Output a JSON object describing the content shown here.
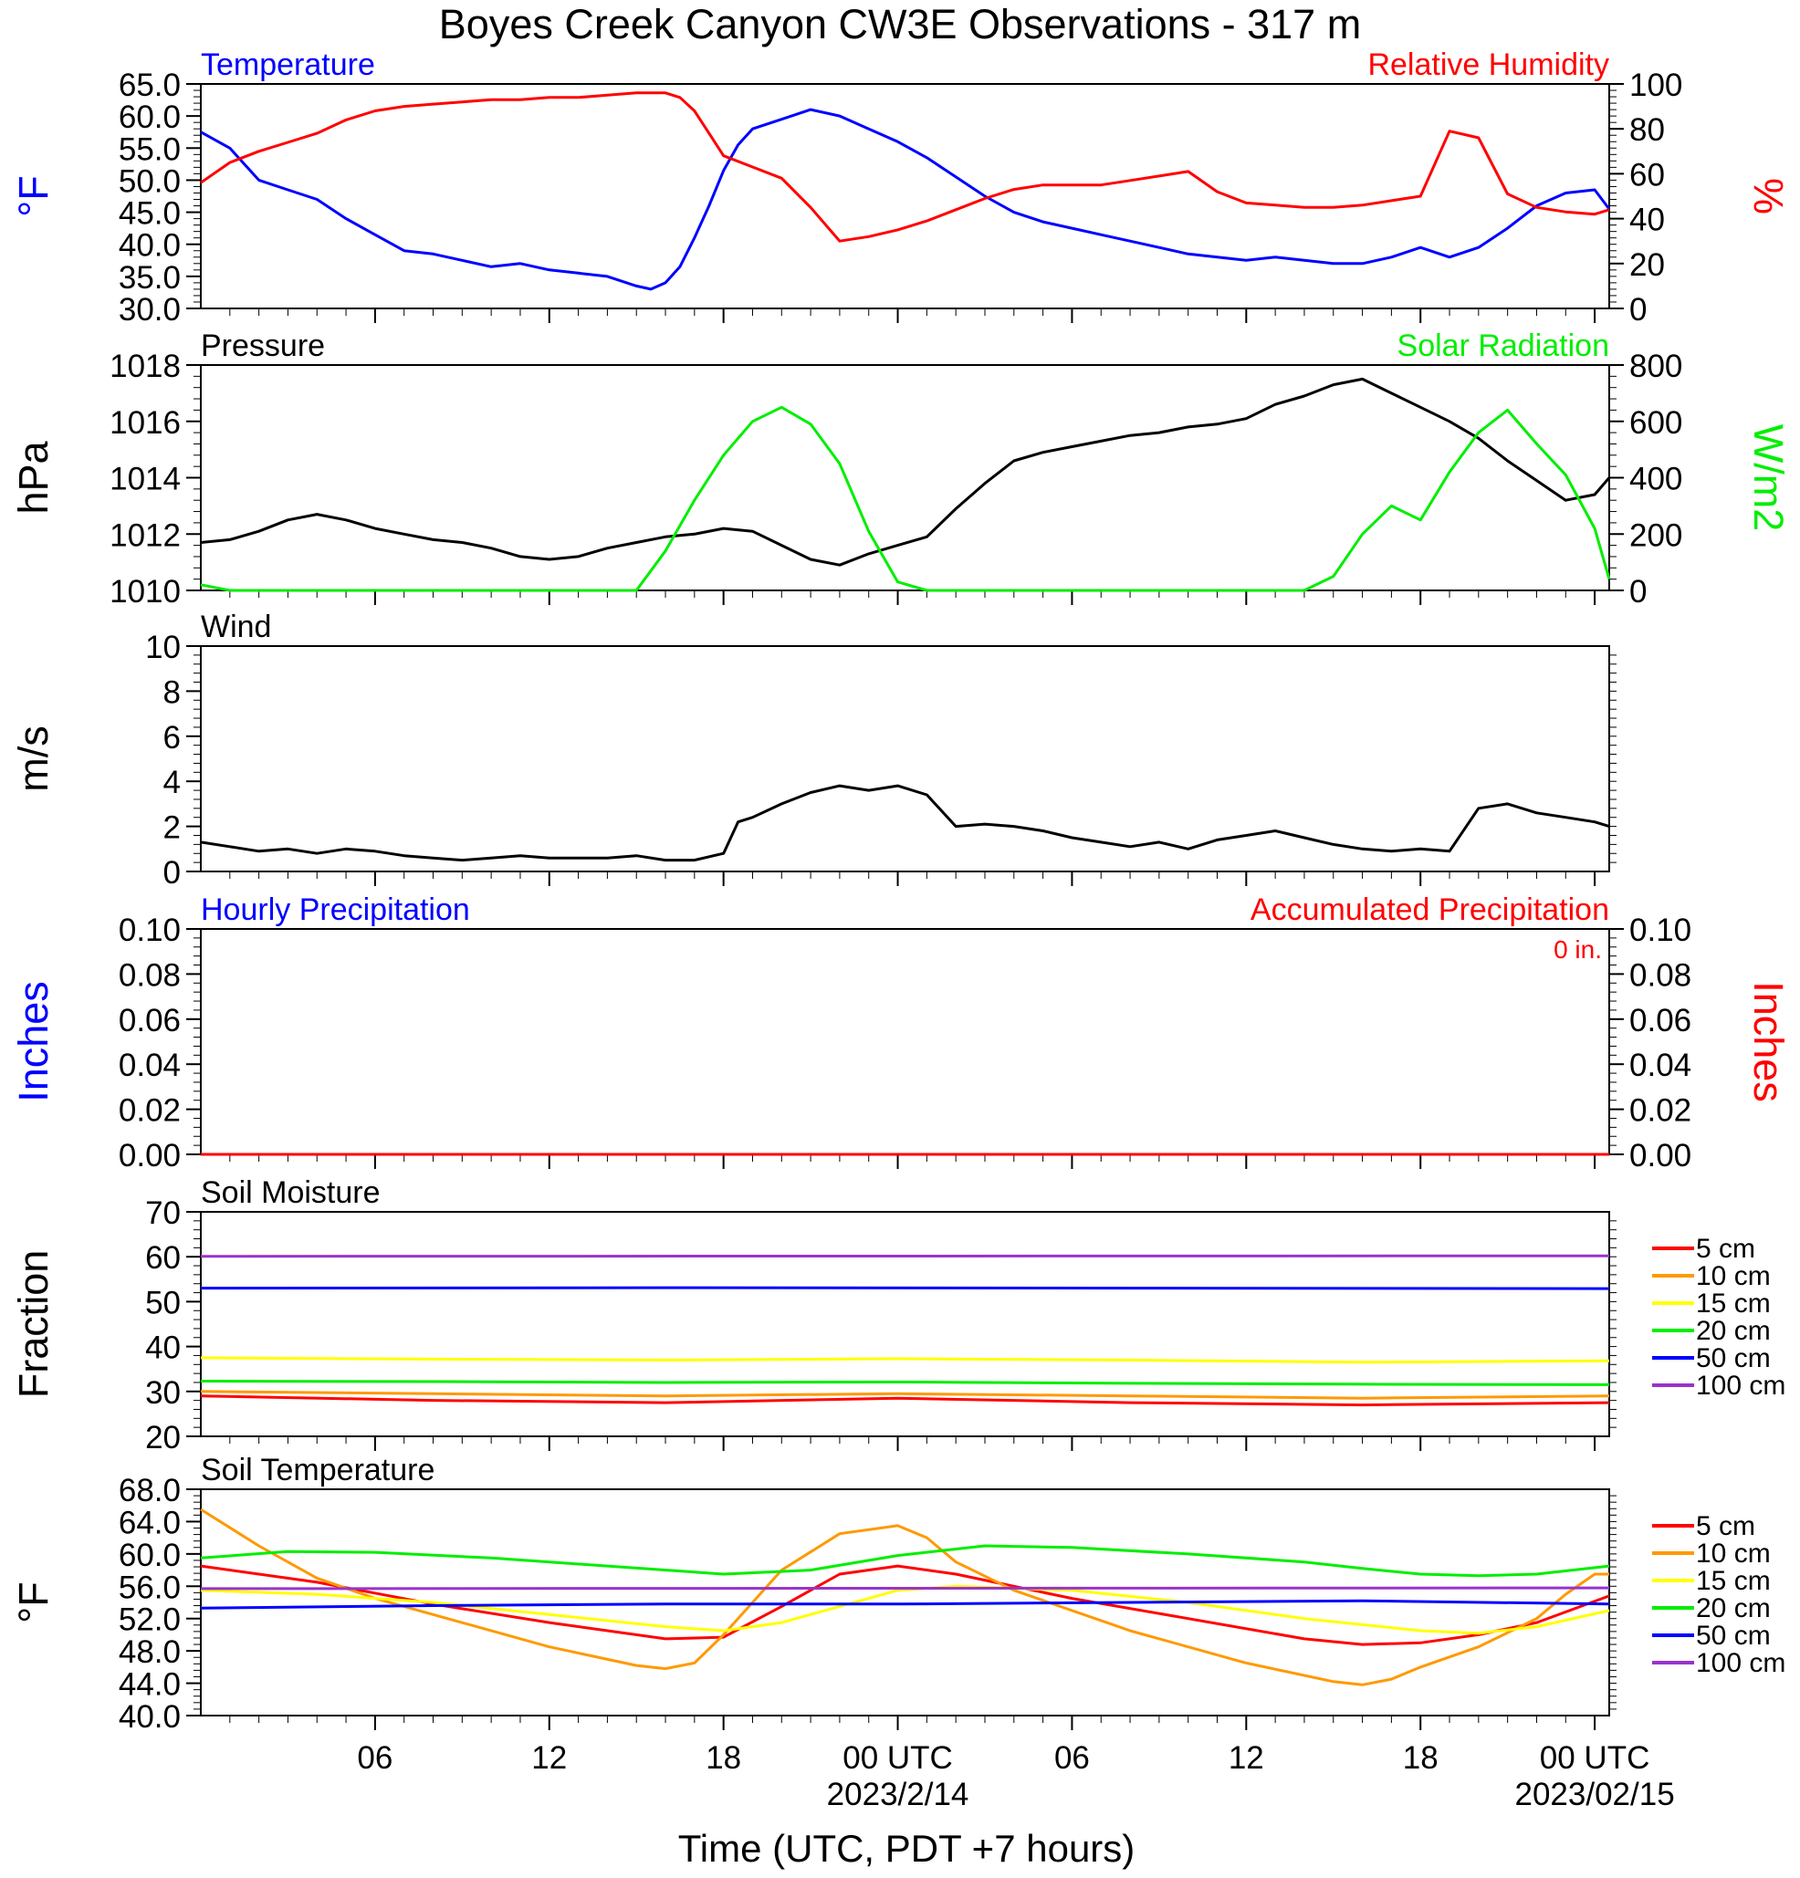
{
  "title": "Boyes Creek Canyon CW3E Observations - 317 m",
  "colors": {
    "blue": "#0000ff",
    "red": "#ff0000",
    "green": "#00ee00",
    "black": "#000000",
    "orange": "#ff9900",
    "yellow": "#ffff00",
    "purple": "#9933cc"
  },
  "time_axis": {
    "label": "Time (UTC, PDT +7 hours)",
    "ticks": [
      {
        "hour": 6,
        "label": "06",
        "date": ""
      },
      {
        "hour": 12,
        "label": "12",
        "date": ""
      },
      {
        "hour": 18,
        "label": "18",
        "date": ""
      },
      {
        "hour": 24,
        "label": "00 UTC",
        "date": "2023/2/14"
      },
      {
        "hour": 30,
        "label": "06",
        "date": ""
      },
      {
        "hour": 36,
        "label": "12",
        "date": ""
      },
      {
        "hour": 42,
        "label": "18",
        "date": ""
      },
      {
        "hour": 48,
        "label": "00 UTC",
        "date": "2023/02/15"
      }
    ],
    "range_hours": [
      0,
      48.5
    ]
  },
  "chart_data": [
    {
      "type": "line",
      "panel": "temperature_humidity",
      "left_title": "Temperature",
      "right_title": "Relative Humidity",
      "ylabel": "°F",
      "y2label": "%",
      "ylim": [
        30,
        65
      ],
      "y2lim": [
        0,
        100
      ],
      "yticks": [
        "65.0",
        "60.0",
        "55.0",
        "50.0",
        "45.0",
        "40.0",
        "35.0",
        "30.0"
      ],
      "y2ticks": [
        "100",
        "80",
        "60",
        "40",
        "20",
        "0"
      ],
      "series": [
        {
          "name": "Temperature",
          "color": "#0000ff",
          "axis": "left",
          "x": [
            0,
            1,
            2,
            3,
            4,
            5,
            6,
            7,
            8,
            9,
            10,
            11,
            12,
            13,
            14,
            15,
            15.5,
            16,
            16.5,
            17,
            17.5,
            18,
            18.5,
            19,
            20,
            21,
            22,
            23,
            24,
            25,
            26,
            27,
            28,
            29,
            30,
            31,
            32,
            33,
            34,
            35,
            36,
            37,
            38,
            39,
            40,
            41,
            42,
            43,
            44,
            45,
            46,
            47,
            48,
            48.5
          ],
          "y": [
            57.5,
            55,
            50,
            48.5,
            47,
            44,
            41.5,
            39,
            38.5,
            37.5,
            36.5,
            37,
            36,
            35.5,
            35,
            33.5,
            33,
            34,
            36.5,
            41,
            46,
            51.5,
            55.5,
            58,
            59.5,
            61,
            60,
            58,
            56,
            53.5,
            50.5,
            47.5,
            45,
            43.5,
            42.5,
            41.5,
            40.5,
            39.5,
            38.5,
            38,
            37.5,
            38,
            37.5,
            37,
            37,
            38,
            39.5,
            38,
            39.5,
            42.5,
            46,
            48,
            48.5,
            45.5
          ]
        },
        {
          "name": "Relative Humidity",
          "color": "#ff0000",
          "axis": "right",
          "x": [
            0,
            1,
            2,
            3,
            4,
            5,
            6,
            7,
            8,
            9,
            10,
            11,
            12,
            13,
            14,
            15,
            16,
            16.5,
            17,
            17.5,
            18,
            19,
            20,
            21,
            22,
            23,
            24,
            25,
            26,
            27,
            28,
            29,
            30,
            31,
            32,
            33,
            34,
            35,
            36,
            37,
            38,
            39,
            40,
            41,
            42,
            43,
            44,
            45,
            46,
            47,
            48,
            48.5
          ],
          "y": [
            56,
            65,
            70,
            74,
            78,
            84,
            88,
            90,
            91,
            92,
            93,
            93,
            94,
            94,
            95,
            96,
            96,
            94,
            88,
            78,
            68,
            63,
            58,
            45,
            30,
            32,
            35,
            39,
            44,
            49,
            53,
            55,
            55,
            55,
            57,
            59,
            61,
            52,
            47,
            46,
            45,
            45,
            46,
            48,
            50,
            79,
            76,
            51,
            45,
            43,
            42,
            44
          ]
        }
      ]
    },
    {
      "type": "line",
      "panel": "pressure_solar",
      "left_title": "Pressure",
      "right_title": "Solar Radiation",
      "ylabel": "hPa",
      "y2label": "W/m2",
      "ylim": [
        1010,
        1018
      ],
      "y2lim": [
        0,
        800
      ],
      "yticks": [
        "1018",
        "1016",
        "1014",
        "1012",
        "1010"
      ],
      "y2ticks": [
        "800",
        "600",
        "400",
        "200",
        "0"
      ],
      "series": [
        {
          "name": "Pressure",
          "color": "#000000",
          "axis": "left",
          "x": [
            0,
            1,
            2,
            3,
            4,
            5,
            6,
            7,
            8,
            9,
            10,
            11,
            12,
            13,
            14,
            15,
            16,
            17,
            18,
            19,
            20,
            21,
            22,
            23,
            24,
            25,
            26,
            27,
            28,
            29,
            30,
            31,
            32,
            33,
            34,
            35,
            36,
            37,
            38,
            39,
            40,
            41,
            42,
            43,
            44,
            45,
            46,
            47,
            48,
            48.5
          ],
          "y": [
            1011.7,
            1011.8,
            1012.1,
            1012.5,
            1012.7,
            1012.5,
            1012.2,
            1012.0,
            1011.8,
            1011.7,
            1011.5,
            1011.2,
            1011.1,
            1011.2,
            1011.5,
            1011.7,
            1011.9,
            1012.0,
            1012.2,
            1012.1,
            1011.6,
            1011.1,
            1010.9,
            1011.3,
            1011.6,
            1011.9,
            1012.9,
            1013.8,
            1014.6,
            1014.9,
            1015.1,
            1015.3,
            1015.5,
            1015.6,
            1015.8,
            1015.9,
            1016.1,
            1016.6,
            1016.9,
            1017.3,
            1017.5,
            1017.0,
            1016.5,
            1016.0,
            1015.4,
            1014.6,
            1013.9,
            1013.2,
            1013.4,
            1014.0
          ]
        },
        {
          "name": "Solar Radiation",
          "color": "#00ee00",
          "axis": "right",
          "x": [
            0,
            1,
            15,
            16,
            17,
            18,
            19,
            20,
            21,
            22,
            23,
            24,
            25,
            26,
            38,
            39,
            40,
            41,
            42,
            43,
            44,
            45,
            46,
            47,
            48,
            48.5
          ],
          "y": [
            20,
            0,
            0,
            140,
            320,
            480,
            600,
            650,
            590,
            450,
            210,
            30,
            0,
            0,
            0,
            50,
            200,
            300,
            250,
            420,
            560,
            640,
            520,
            410,
            220,
            40
          ]
        }
      ]
    },
    {
      "type": "line",
      "panel": "wind",
      "left_title": "Wind",
      "ylabel": "m/s",
      "ylim": [
        0,
        10
      ],
      "yticks": [
        "10",
        "8",
        "6",
        "4",
        "2",
        "0"
      ],
      "series": [
        {
          "name": "Wind",
          "color": "#000000",
          "axis": "left",
          "x": [
            0,
            1,
            2,
            3,
            4,
            5,
            6,
            7,
            8,
            9,
            10,
            11,
            12,
            13,
            14,
            15,
            16,
            17,
            18,
            18.5,
            19,
            20,
            21,
            22,
            23,
            24,
            25,
            26,
            27,
            28,
            29,
            30,
            31,
            32,
            33,
            34,
            35,
            36,
            37,
            38,
            39,
            40,
            41,
            42,
            43,
            44,
            45,
            46,
            47,
            48,
            48.5
          ],
          "y": [
            1.3,
            1.1,
            0.9,
            1.0,
            0.8,
            1.0,
            0.9,
            0.7,
            0.6,
            0.5,
            0.6,
            0.7,
            0.6,
            0.6,
            0.6,
            0.7,
            0.5,
            0.5,
            0.8,
            2.2,
            2.4,
            3.0,
            3.5,
            3.8,
            3.6,
            3.8,
            3.4,
            2.0,
            2.1,
            2.0,
            1.8,
            1.5,
            1.3,
            1.1,
            1.3,
            1.0,
            1.4,
            1.6,
            1.8,
            1.5,
            1.2,
            1.0,
            0.9,
            1.0,
            0.9,
            2.8,
            3.0,
            2.6,
            2.4,
            2.2,
            2.0
          ]
        }
      ]
    },
    {
      "type": "line",
      "panel": "precipitation",
      "left_title": "Hourly Precipitation",
      "right_title": "Accumulated Precipitation",
      "annotation": "0 in.",
      "ylabel": "Inches",
      "y2label": "Inches",
      "ylim": [
        0,
        0.1
      ],
      "y2lim": [
        0,
        0.1
      ],
      "yticks": [
        "0.10",
        "0.08",
        "0.06",
        "0.04",
        "0.02",
        "0.00"
      ],
      "y2ticks": [
        "0.10",
        "0.08",
        "0.06",
        "0.04",
        "0.02",
        "0.00"
      ],
      "series": [
        {
          "name": "Hourly Precipitation",
          "color": "#0000ff",
          "axis": "left",
          "x": [
            0,
            48.5
          ],
          "y": [
            0,
            0
          ]
        },
        {
          "name": "Accumulated Precipitation",
          "color": "#ff0000",
          "axis": "right",
          "x": [
            0,
            48.5
          ],
          "y": [
            0,
            0
          ]
        }
      ]
    },
    {
      "type": "line",
      "panel": "soil_moisture",
      "left_title": "Soil Moisture",
      "ylabel": "Fraction",
      "ylim": [
        20,
        70
      ],
      "yticks": [
        "70",
        "60",
        "50",
        "40",
        "30",
        "20"
      ],
      "legend": [
        "5 cm",
        "10 cm",
        "15 cm",
        "20 cm",
        "50 cm",
        "100 cm"
      ],
      "series": [
        {
          "name": "5 cm",
          "color": "#ff0000",
          "x": [
            0,
            8,
            16,
            24,
            32,
            40,
            48.5
          ],
          "y": [
            29,
            28,
            27.5,
            28.5,
            27.5,
            27,
            27.5
          ]
        },
        {
          "name": "10 cm",
          "color": "#ff9900",
          "x": [
            0,
            8,
            16,
            24,
            32,
            40,
            48.5
          ],
          "y": [
            30,
            29.5,
            29,
            29.5,
            29,
            28.5,
            29
          ]
        },
        {
          "name": "15 cm",
          "color": "#ffff00",
          "x": [
            0,
            8,
            16,
            24,
            32,
            40,
            48.5
          ],
          "y": [
            37.5,
            37.2,
            37,
            37.3,
            37,
            36.5,
            36.8
          ]
        },
        {
          "name": "20 cm",
          "color": "#00ee00",
          "x": [
            0,
            8,
            16,
            24,
            32,
            40,
            48.5
          ],
          "y": [
            32.3,
            32.2,
            32,
            32.1,
            31.8,
            31.6,
            31.5
          ]
        },
        {
          "name": "50 cm",
          "color": "#0000ff",
          "x": [
            0,
            16,
            32,
            48.5
          ],
          "y": [
            53,
            53.1,
            53,
            52.9
          ]
        },
        {
          "name": "100 cm",
          "color": "#9933cc",
          "x": [
            0,
            48.5
          ],
          "y": [
            60.1,
            60.2
          ]
        }
      ]
    },
    {
      "type": "line",
      "panel": "soil_temperature",
      "left_title": "Soil Temperature",
      "ylabel": "°F",
      "ylim": [
        40,
        68
      ],
      "yticks": [
        "68.0",
        "64.0",
        "60.0",
        "56.0",
        "52.0",
        "48.0",
        "44.0",
        "40.0"
      ],
      "legend": [
        "5 cm",
        "10 cm",
        "15 cm",
        "20 cm",
        "50 cm",
        "100 cm"
      ],
      "series": [
        {
          "name": "5 cm",
          "color": "#ff0000",
          "x": [
            0,
            4,
            8,
            12,
            16,
            18,
            20,
            22,
            24,
            26,
            30,
            34,
            38,
            40,
            42,
            44,
            46,
            48.5
          ],
          "y": [
            58.5,
            56.5,
            53.8,
            51.5,
            49.5,
            49.7,
            53.5,
            57.5,
            58.5,
            57.5,
            54.5,
            52,
            49.5,
            48.8,
            49,
            50,
            51.5,
            54.8
          ]
        },
        {
          "name": "10 cm",
          "color": "#ff9900",
          "x": [
            0,
            2,
            4,
            6,
            8,
            12,
            15,
            16,
            17,
            18,
            19,
            20,
            22,
            24,
            25,
            26,
            28,
            32,
            36,
            39,
            40,
            41,
            42,
            44,
            46,
            47,
            48,
            48.5
          ],
          "y": [
            65.5,
            61,
            57,
            54.5,
            52.5,
            48.5,
            46.2,
            45.8,
            46.5,
            50,
            54,
            58,
            62.5,
            63.5,
            62,
            59,
            55.5,
            50.5,
            46.5,
            44.2,
            43.8,
            44.5,
            46,
            48.5,
            52,
            55,
            57.5,
            57.5
          ]
        },
        {
          "name": "15 cm",
          "color": "#ffff00",
          "x": [
            0,
            4,
            8,
            12,
            16,
            18,
            20,
            22,
            24,
            26,
            30,
            34,
            38,
            42,
            44,
            46,
            48.5
          ],
          "y": [
            55.5,
            55,
            54,
            52.5,
            51,
            50.5,
            51.5,
            53.5,
            55.5,
            56,
            55.5,
            54,
            52,
            50.5,
            50.2,
            51,
            53
          ]
        },
        {
          "name": "20 cm",
          "color": "#00ee00",
          "x": [
            0,
            3,
            6,
            10,
            14,
            18,
            21,
            24,
            27,
            30,
            34,
            38,
            40,
            42,
            44,
            46,
            48.5
          ],
          "y": [
            59.5,
            60.3,
            60.2,
            59.5,
            58.5,
            57.5,
            58,
            59.8,
            61,
            60.8,
            60,
            59,
            58.2,
            57.5,
            57.3,
            57.5,
            58.5
          ]
        },
        {
          "name": "50 cm",
          "color": "#0000ff",
          "x": [
            0,
            8,
            16,
            24,
            32,
            40,
            48.5
          ],
          "y": [
            53.3,
            53.6,
            53.8,
            53.8,
            54,
            54.2,
            53.8
          ]
        },
        {
          "name": "100 cm",
          "color": "#9933cc",
          "x": [
            0,
            48.5
          ],
          "y": [
            55.7,
            55.8
          ]
        }
      ]
    }
  ]
}
